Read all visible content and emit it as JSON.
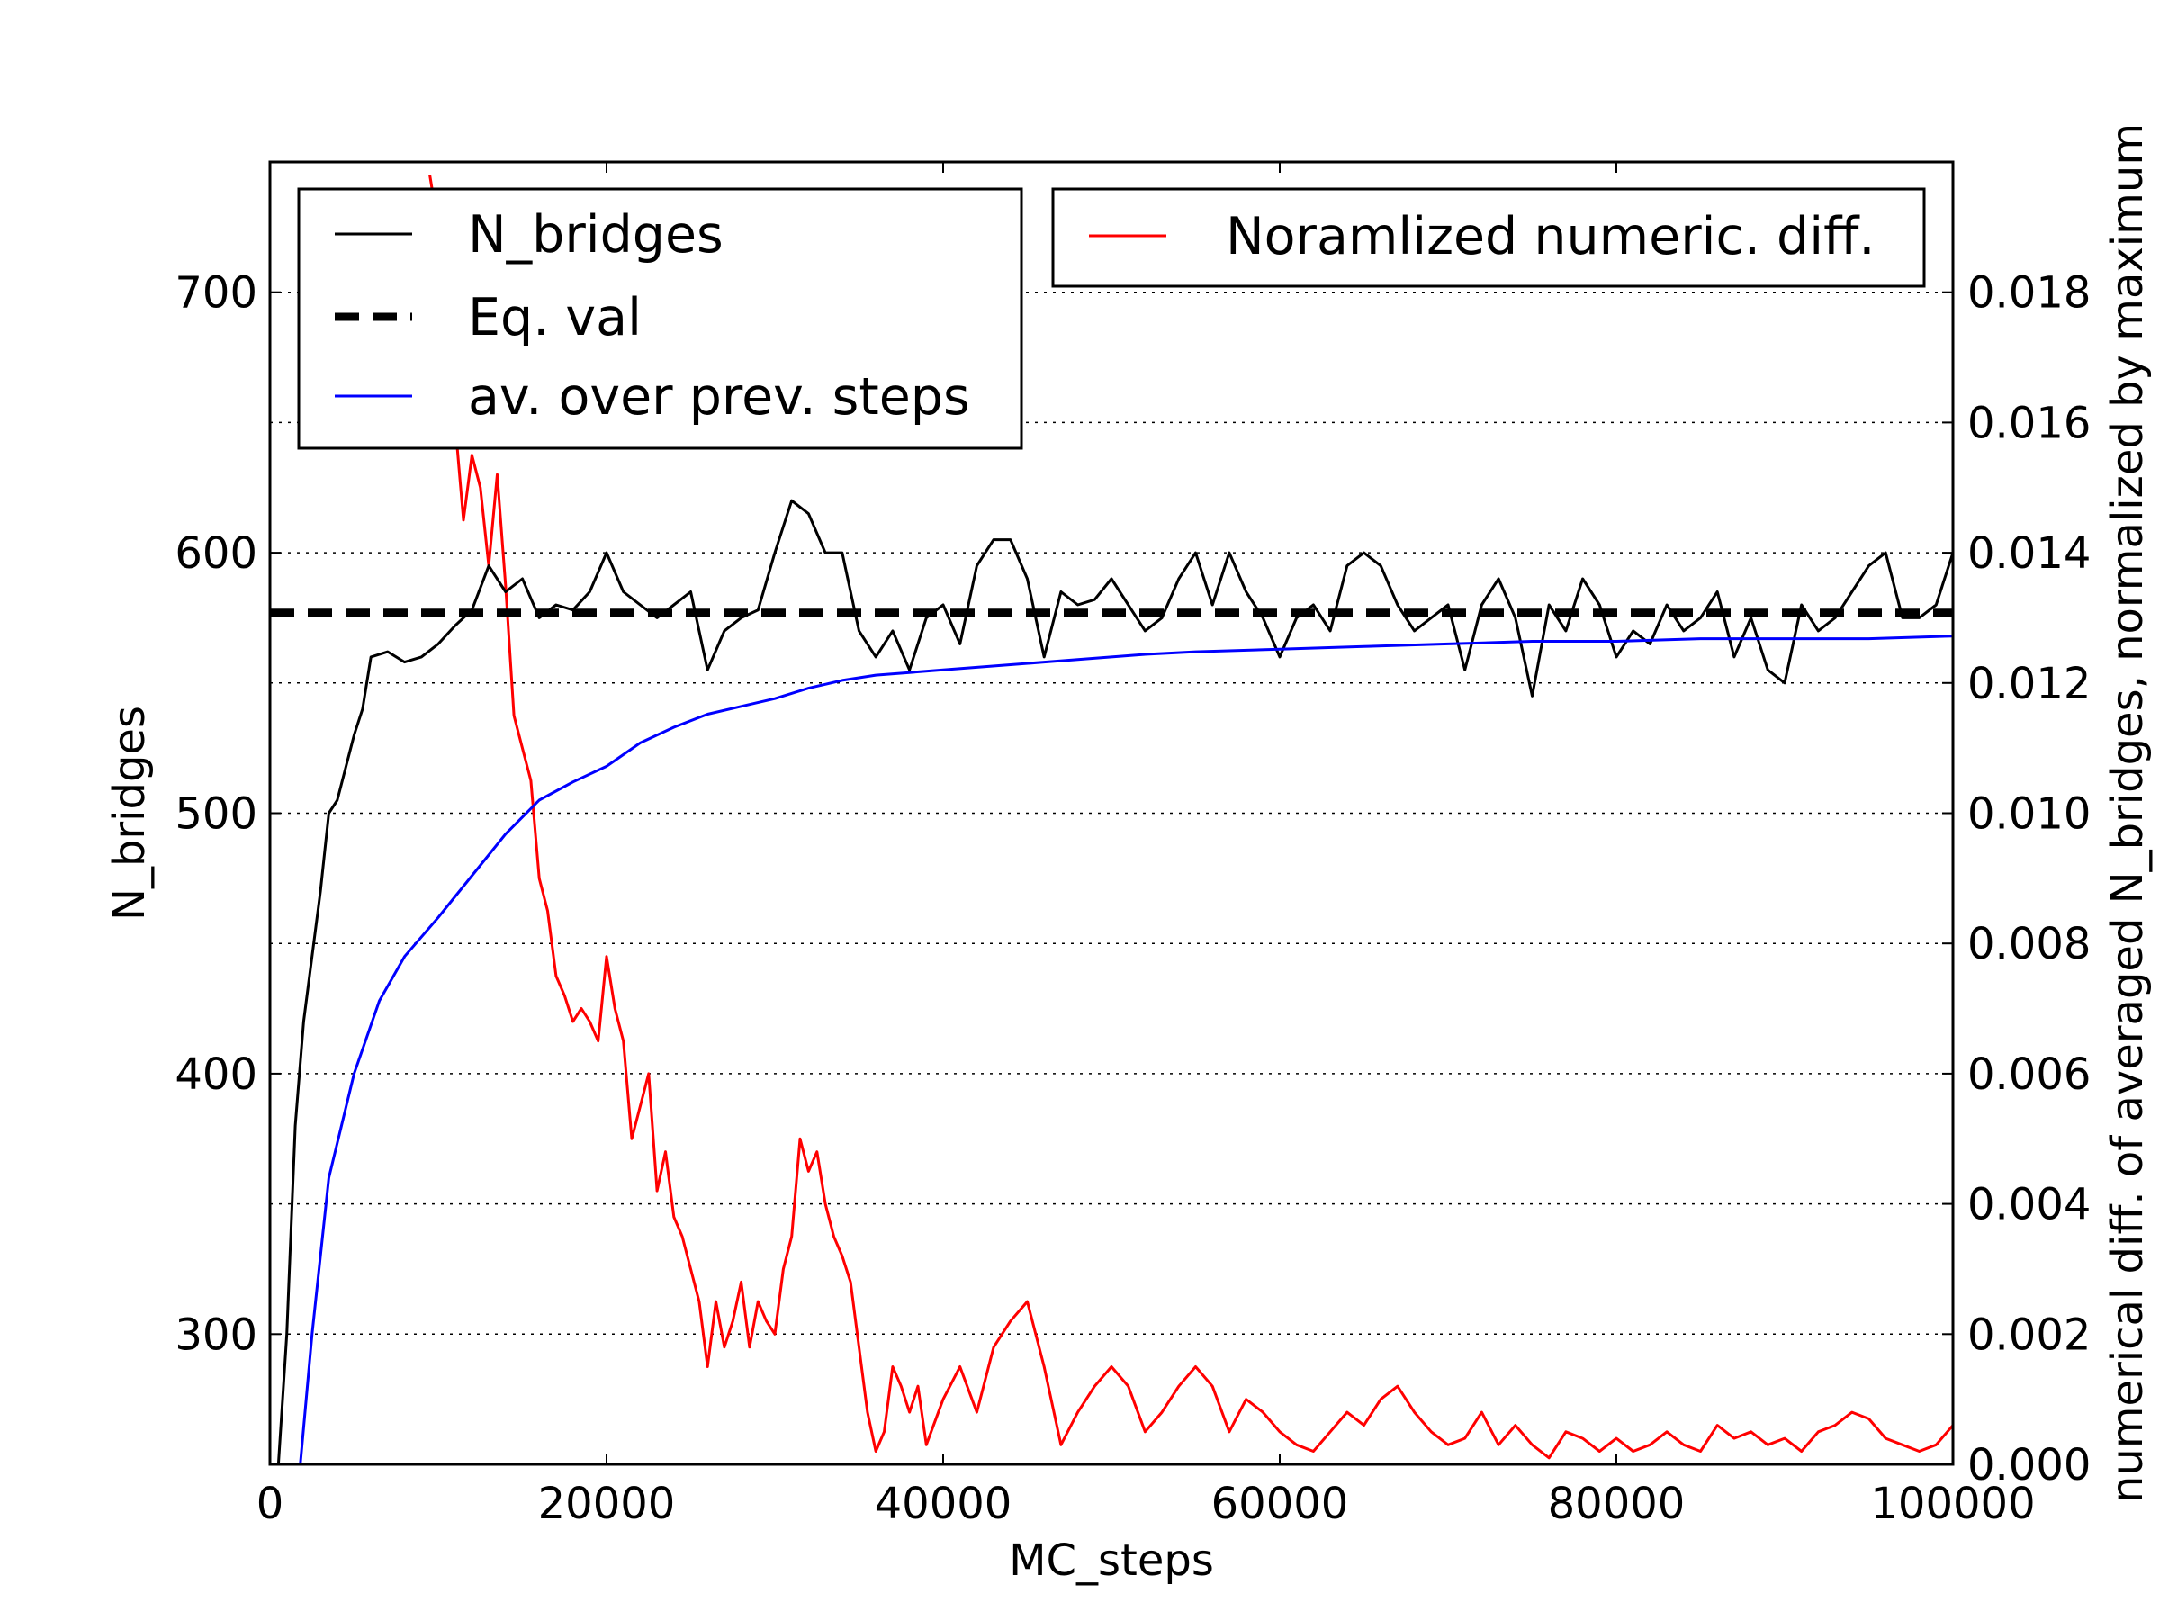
{
  "chart_data": {
    "type": "line",
    "xlabel": "MC_steps",
    "ylabel_left": "N_bridges",
    "ylabel_right": "numerical diff. of averaged N_bridges, normalized by maximum",
    "xlim": [
      0,
      100000
    ],
    "ylim_left": [
      250,
      750
    ],
    "ylim_right": [
      0,
      0.02
    ],
    "x_ticks": [
      "0",
      "20000",
      "40000",
      "60000",
      "80000",
      "100000"
    ],
    "y_ticks_left": [
      "300",
      "400",
      "500",
      "600",
      "700"
    ],
    "y_ticks_right": [
      "0.000",
      "0.002",
      "0.004",
      "0.006",
      "0.008",
      "0.010",
      "0.012",
      "0.014",
      "0.016",
      "0.018"
    ],
    "grid": "horizontal dotted",
    "legend_left": {
      "placement": "top-left",
      "entries": [
        "N_bridges",
        "Eq. val",
        "av. over prev. steps"
      ]
    },
    "legend_right": {
      "placement": "top-right",
      "entries": [
        "Noramlized numeric. diff."
      ]
    },
    "colors": {
      "n_bridges": "#000000",
      "eq_val": "#000000",
      "average": "#0000ff",
      "numeric_diff": "#ff0000"
    },
    "series": [
      {
        "name": "N_bridges",
        "axis": "left",
        "style": "solid",
        "x": [
          500,
          1000,
          1500,
          2000,
          3000,
          3500,
          4000,
          5000,
          5500,
          6000,
          7000,
          8000,
          9000,
          10000,
          11000,
          12000,
          13000,
          14000,
          15000,
          16000,
          17000,
          18000,
          19000,
          20000,
          21000,
          22000,
          23000,
          24000,
          25000,
          26000,
          27000,
          28000,
          29000,
          30000,
          31000,
          32000,
          33000,
          34000,
          35000,
          36000,
          37000,
          38000,
          39000,
          40000,
          41000,
          42000,
          43000,
          44000,
          45000,
          46000,
          47000,
          48000,
          49000,
          50000,
          51000,
          52000,
          53000,
          54000,
          55000,
          56000,
          57000,
          58000,
          59000,
          60000,
          61000,
          62000,
          63000,
          64000,
          65000,
          66000,
          67000,
          68000,
          69000,
          70000,
          71000,
          72000,
          73000,
          74000,
          75000,
          76000,
          77000,
          78000,
          79000,
          80000,
          81000,
          82000,
          83000,
          84000,
          85000,
          86000,
          87000,
          88000,
          89000,
          90000,
          91000,
          92000,
          93000,
          94000,
          95000,
          96000,
          97000,
          98000,
          99000,
          100000
        ],
        "values": [
          250,
          300,
          380,
          420,
          470,
          500,
          505,
          530,
          540,
          560,
          562,
          558,
          560,
          565,
          572,
          578,
          595,
          585,
          590,
          575,
          580,
          578,
          585,
          600,
          585,
          580,
          575,
          580,
          585,
          555,
          570,
          575,
          578,
          600,
          620,
          615,
          600,
          600,
          570,
          560,
          570,
          555,
          575,
          580,
          565,
          595,
          605,
          605,
          590,
          560,
          585,
          580,
          582,
          590,
          580,
          570,
          575,
          590,
          600,
          580,
          600,
          585,
          575,
          560,
          575,
          580,
          570,
          595,
          600,
          595,
          580,
          570,
          575,
          580,
          555,
          580,
          590,
          575,
          545,
          580,
          570,
          590,
          580,
          560,
          570,
          565,
          580,
          570,
          575,
          585,
          560,
          575,
          555,
          550,
          580,
          570,
          575,
          585,
          595,
          600,
          575,
          575,
          580,
          600
        ]
      },
      {
        "name": "Eq. val",
        "axis": "left",
        "style": "dashed",
        "x": [
          0,
          100000
        ],
        "values": [
          577,
          577
        ]
      },
      {
        "name": "av. over prev. steps",
        "axis": "left",
        "style": "solid",
        "x": [
          1800,
          2500,
          3500,
          5000,
          6500,
          8000,
          10000,
          12000,
          14000,
          16000,
          18000,
          20000,
          22000,
          24000,
          26000,
          28000,
          30000,
          32000,
          34000,
          36000,
          38000,
          40000,
          42000,
          44000,
          46000,
          48000,
          50000,
          52000,
          55000,
          60000,
          65000,
          70000,
          75000,
          80000,
          85000,
          90000,
          95000,
          100000
        ],
        "values": [
          250,
          300,
          360,
          400,
          428,
          445,
          460,
          476,
          492,
          505,
          512,
          518,
          527,
          533,
          538,
          541,
          544,
          548,
          551,
          553,
          554,
          555,
          556,
          557,
          558,
          559,
          560,
          561,
          562,
          563,
          564,
          565,
          566,
          566,
          567,
          567,
          567,
          568
        ]
      },
      {
        "name": "Noramlized numeric. diff.",
        "axis": "right",
        "style": "solid",
        "x": [
          9500,
          10000,
          10500,
          11000,
          11500,
          12000,
          12500,
          13000,
          13500,
          14000,
          14500,
          15000,
          15500,
          16000,
          16500,
          17000,
          17500,
          18000,
          18500,
          19000,
          19500,
          20000,
          20500,
          21000,
          21500,
          22000,
          22500,
          23000,
          23500,
          24000,
          24500,
          25000,
          25500,
          26000,
          26500,
          27000,
          27500,
          28000,
          28500,
          29000,
          29500,
          30000,
          30500,
          31000,
          31500,
          32000,
          32500,
          33000,
          33500,
          34000,
          34500,
          35000,
          35500,
          36000,
          36500,
          37000,
          37500,
          38000,
          38500,
          39000,
          40000,
          41000,
          42000,
          43000,
          44000,
          45000,
          46000,
          47000,
          48000,
          49000,
          50000,
          51000,
          52000,
          53000,
          54000,
          55000,
          56000,
          57000,
          58000,
          59000,
          60000,
          61000,
          62000,
          63000,
          64000,
          65000,
          66000,
          67000,
          68000,
          69000,
          70000,
          71000,
          72000,
          73000,
          74000,
          75000,
          76000,
          77000,
          78000,
          79000,
          80000,
          81000,
          82000,
          83000,
          84000,
          85000,
          86000,
          87000,
          88000,
          89000,
          90000,
          91000,
          92000,
          93000,
          94000,
          95000,
          96000,
          97000,
          98000,
          99000,
          100000
        ],
        "values": [
          0.0198,
          0.019,
          0.0175,
          0.016,
          0.0145,
          0.0155,
          0.015,
          0.0138,
          0.0152,
          0.0135,
          0.0115,
          0.011,
          0.0105,
          0.009,
          0.0085,
          0.0075,
          0.0072,
          0.0068,
          0.007,
          0.0068,
          0.0065,
          0.0078,
          0.007,
          0.0065,
          0.005,
          0.0055,
          0.006,
          0.0042,
          0.0048,
          0.0038,
          0.0035,
          0.003,
          0.0025,
          0.0015,
          0.0025,
          0.0018,
          0.0022,
          0.0028,
          0.0018,
          0.0025,
          0.0022,
          0.002,
          0.003,
          0.0035,
          0.005,
          0.0045,
          0.0048,
          0.004,
          0.0035,
          0.0032,
          0.0028,
          0.0018,
          0.0008,
          0.0002,
          0.0005,
          0.0015,
          0.0012,
          0.0008,
          0.0012,
          0.0003,
          0.001,
          0.0015,
          0.0008,
          0.0018,
          0.0022,
          0.0025,
          0.0015,
          0.0003,
          0.0008,
          0.0012,
          0.0015,
          0.0012,
          0.0005,
          0.0008,
          0.0012,
          0.0015,
          0.0012,
          0.0005,
          0.001,
          0.0008,
          0.0005,
          0.0003,
          0.0002,
          0.0005,
          0.0008,
          0.0006,
          0.001,
          0.0012,
          0.0008,
          0.0005,
          0.0003,
          0.0004,
          0.0008,
          0.0003,
          0.0006,
          0.0003,
          0.0001,
          0.0005,
          0.0004,
          0.0002,
          0.0004,
          0.0002,
          0.0003,
          0.0005,
          0.0003,
          0.0002,
          0.0006,
          0.0004,
          0.0005,
          0.0003,
          0.0004,
          0.0002,
          0.0005,
          0.0006,
          0.0008,
          0.0007,
          0.0004,
          0.0003,
          0.0002,
          0.0003,
          0.0006
        ]
      }
    ]
  }
}
